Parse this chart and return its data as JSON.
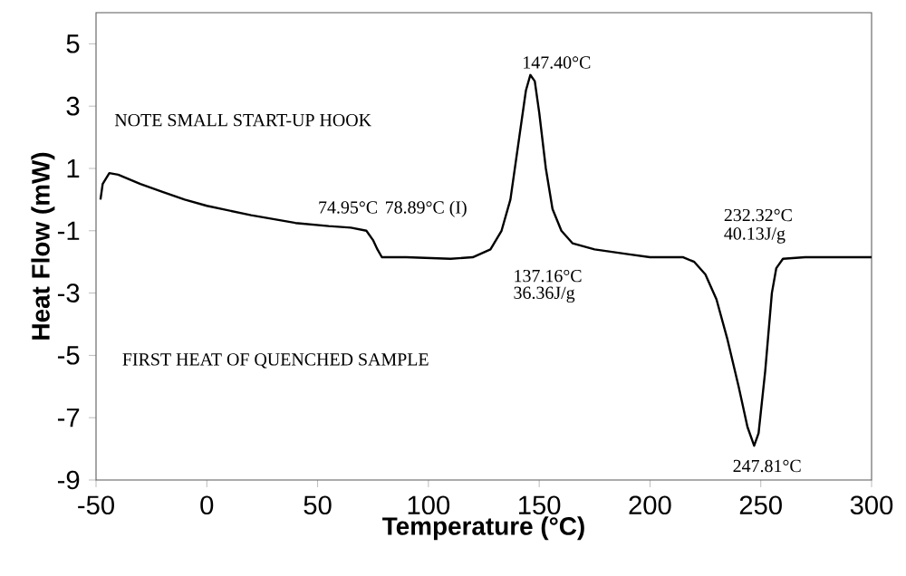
{
  "chart_data": {
    "type": "line",
    "xlabel": "Temperature (°C)",
    "ylabel": "Heat Flow (mW)",
    "x": [
      -48,
      -47,
      -44,
      -40,
      -30,
      -20,
      -10,
      0,
      20,
      40,
      55,
      65,
      72,
      75,
      77,
      79,
      90,
      110,
      120,
      128,
      133,
      137,
      141,
      144,
      146,
      148,
      150,
      153,
      156,
      160,
      165,
      175,
      190,
      200,
      215,
      220,
      225,
      230,
      235,
      240,
      244,
      247,
      249,
      252,
      255,
      257,
      260,
      270,
      300
    ],
    "series": [
      {
        "color": "#000000",
        "values": [
          0.0,
          0.5,
          0.85,
          0.8,
          0.5,
          0.25,
          0.0,
          -0.2,
          -0.5,
          -0.75,
          -0.85,
          -0.9,
          -1.0,
          -1.3,
          -1.6,
          -1.85,
          -1.85,
          -1.9,
          -1.85,
          -1.6,
          -1.0,
          0.0,
          2.0,
          3.5,
          4.0,
          3.8,
          2.8,
          1.0,
          -0.3,
          -1.0,
          -1.4,
          -1.6,
          -1.75,
          -1.85,
          -1.85,
          -2.0,
          -2.4,
          -3.2,
          -4.5,
          -6.0,
          -7.3,
          -7.9,
          -7.5,
          -5.5,
          -3.0,
          -2.2,
          -1.9,
          -1.85,
          -1.85
        ]
      }
    ],
    "xlim": [
      -50,
      300
    ],
    "xticks": [
      -50,
      0,
      50,
      100,
      150,
      200,
      250,
      300
    ],
    "ylim": [
      -9,
      6
    ],
    "yticks": [
      -9,
      -7,
      -5,
      -3,
      -1,
      1,
      3,
      5
    ],
    "grid": false,
    "marker": "none",
    "line_style": "solid",
    "annotations": [
      "NOTE SMALL START-UP HOOK",
      "FIRST HEAT OF QUENCHED SAMPLE",
      "74.95°C",
      "78.89°C  (I)",
      "147.40°C",
      "137.16°C",
      "36.36J/g",
      "232.32°C",
      "40.13J/g",
      "247.81°C"
    ]
  }
}
